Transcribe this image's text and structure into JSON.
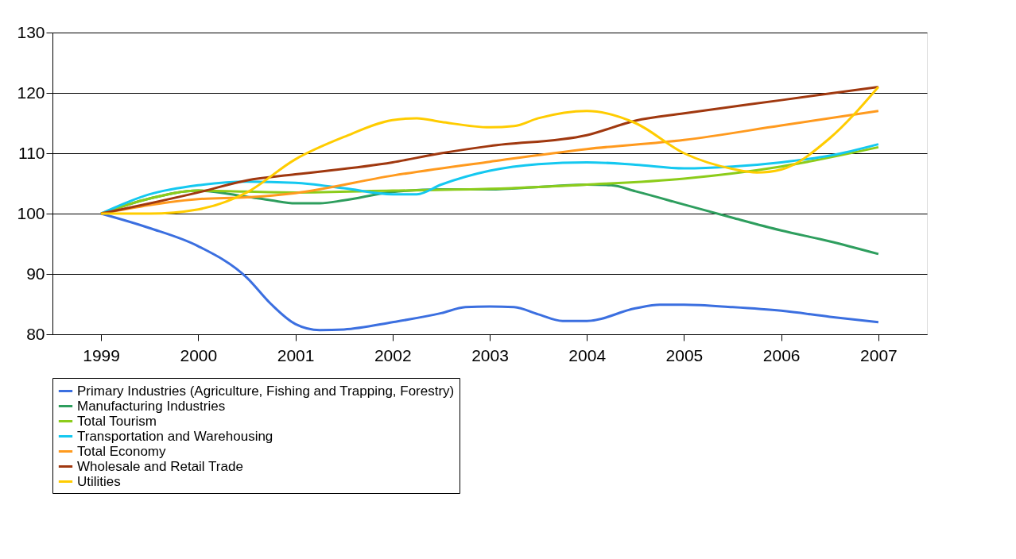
{
  "chart_data": {
    "type": "line",
    "xlim": [
      1998.5,
      2007.5
    ],
    "xticks": [
      1999,
      2000,
      2001,
      2002,
      2003,
      2004,
      2005,
      2006,
      2007
    ],
    "ylim": [
      80,
      130
    ],
    "yticks": [
      80,
      90,
      100,
      110,
      120,
      130
    ],
    "grid": "y",
    "legend": "bottom",
    "marker": "none",
    "line_style": "solid",
    "series": [
      {
        "name": "Primary Industries (Agriculture, Fishing and Trapping, Forestry)",
        "color": "#3b6fe0",
        "x": [
          1999,
          1999.5,
          2000,
          2000.5,
          2000.75,
          2001,
          2001.25,
          2001.5,
          2002,
          2002.5,
          2002.75,
          2003,
          2003.25,
          2003.5,
          2003.75,
          2004,
          2004.5,
          2004.75,
          2005,
          2005.5,
          2006,
          2006.5,
          2007
        ],
        "values": [
          100,
          97.6,
          94.6,
          89.4,
          85,
          81.7,
          80.7,
          80.8,
          82,
          83.5,
          84.5,
          84.6,
          84.5,
          83.3,
          82.2,
          82.2,
          84.3,
          84.9,
          84.9,
          84.5,
          83.9,
          82.9,
          82
        ]
      },
      {
        "name": "Manufacturing Industries",
        "color": "#2e9e5e",
        "x": [
          1999,
          1999.5,
          2000,
          2000.5,
          2000.75,
          2001,
          2001.25,
          2001.5,
          2002,
          2002.5,
          2003,
          2003.5,
          2004,
          2004.25,
          2004.5,
          2005,
          2005.5,
          2006,
          2006.5,
          2007
        ],
        "values": [
          100,
          102.5,
          103.8,
          102.8,
          102.2,
          101.7,
          101.7,
          102.2,
          103.6,
          104,
          104,
          104.4,
          104.8,
          104.7,
          103.7,
          101.5,
          99.3,
          97.2,
          95.4,
          93.3
        ]
      },
      {
        "name": "Total Tourism",
        "color": "#8ccc1a",
        "x": [
          1999,
          1999.5,
          2000,
          2001,
          2002,
          2003,
          2004,
          2005,
          2006,
          2007
        ],
        "values": [
          100,
          102.5,
          103.8,
          103.5,
          103.8,
          104.1,
          104.8,
          105.8,
          107.8,
          111
        ]
      },
      {
        "name": "Transportation and Warehousing",
        "color": "#14c8f0",
        "x": [
          1999,
          1999.5,
          2000,
          2000.5,
          2001,
          2001.5,
          2002,
          2002.25,
          2002.5,
          2003,
          2003.5,
          2004,
          2004.5,
          2005,
          2005.5,
          2006,
          2006.5,
          2007
        ],
        "values": [
          100,
          103.2,
          104.7,
          105.3,
          105.1,
          104.2,
          103.2,
          103.2,
          104.8,
          107.1,
          108.2,
          108.5,
          108.1,
          107.5,
          107.8,
          108.5,
          109.6,
          111.5
        ]
      },
      {
        "name": "Total Economy",
        "color": "#ff9a1e",
        "x": [
          1999,
          2000,
          2000.5,
          2001,
          2002,
          2003,
          2004,
          2005,
          2006,
          2007
        ],
        "values": [
          100,
          102.4,
          102.7,
          103.4,
          106.3,
          108.6,
          110.7,
          112.2,
          114.6,
          117
        ]
      },
      {
        "name": "Wholesale and Retail Trade",
        "color": "#a0380f",
        "x": [
          1999,
          2000,
          2000.5,
          2001,
          2002,
          2002.5,
          2003,
          2004,
          2004.5,
          2005,
          2006,
          2007
        ],
        "values": [
          100,
          103.5,
          105.5,
          106.5,
          108.5,
          110,
          111.2,
          113,
          115.4,
          116.6,
          118.8,
          121
        ]
      },
      {
        "name": "Utilities",
        "color": "#ffcc00",
        "x": [
          1999,
          1999.5,
          2000,
          2000.5,
          2001,
          2001.5,
          2002,
          2002.25,
          2002.5,
          2003,
          2003.25,
          2003.5,
          2004,
          2004.5,
          2005,
          2005.5,
          2005.75,
          2006,
          2006.5,
          2007
        ],
        "values": [
          100,
          100,
          100.7,
          103.5,
          109,
          112.7,
          115.5,
          115.8,
          115.2,
          114.3,
          114.5,
          115.8,
          117,
          115,
          110,
          107.4,
          106.8,
          107.3,
          112.5,
          121
        ]
      }
    ]
  }
}
